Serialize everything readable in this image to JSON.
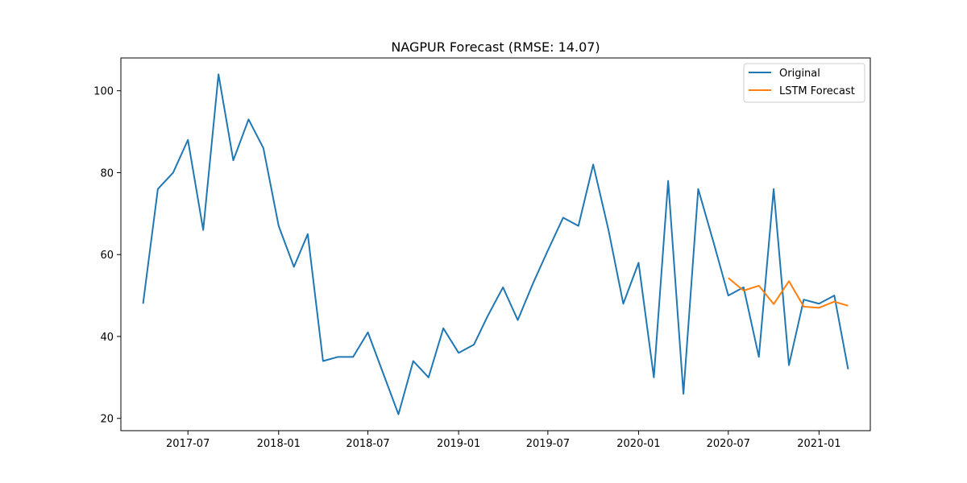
{
  "chart_data": {
    "type": "line",
    "title": "NAGPUR Forecast (RMSE: 14.07)",
    "xlabel": "",
    "ylabel": "",
    "grid": false,
    "legend_placement": "top-right",
    "xlim": [
      "2017-02-15",
      "2021-04-15"
    ],
    "ylim": [
      17,
      108
    ],
    "x_ticks": [
      "2017-07",
      "2018-01",
      "2018-07",
      "2019-01",
      "2019-07",
      "2020-01",
      "2020-07",
      "2021-01"
    ],
    "y_ticks": [
      20,
      40,
      60,
      80,
      100
    ],
    "series": [
      {
        "name": "Original",
        "color": "#1f77b4",
        "x": [
          "2017-04",
          "2017-05",
          "2017-06",
          "2017-07",
          "2017-08",
          "2017-09",
          "2017-10",
          "2017-11",
          "2017-12",
          "2018-01",
          "2018-02",
          "2018-03",
          "2018-04",
          "2018-05",
          "2018-06",
          "2018-07",
          "2018-08",
          "2018-09",
          "2018-10",
          "2018-11",
          "2018-12",
          "2019-01",
          "2019-02",
          "2019-03",
          "2019-04",
          "2019-05",
          "2019-06",
          "2019-07",
          "2019-08",
          "2019-09",
          "2019-10",
          "2019-11",
          "2019-12",
          "2020-01",
          "2020-02",
          "2020-03",
          "2020-04",
          "2020-05",
          "2020-06",
          "2020-07",
          "2020-08",
          "2020-09",
          "2020-10",
          "2020-11",
          "2020-12",
          "2021-01",
          "2021-02",
          "2021-03"
        ],
        "values": [
          48,
          76,
          80,
          88,
          66,
          104,
          83,
          93,
          86,
          67,
          57,
          65,
          34,
          35,
          35,
          41,
          31,
          21,
          34,
          30,
          42,
          36,
          38,
          45,
          52,
          44,
          53,
          61,
          69,
          67,
          82,
          66,
          48,
          58,
          30,
          78,
          26,
          76,
          63,
          50,
          52,
          35,
          76,
          33,
          49,
          48,
          50,
          32
        ]
      },
      {
        "name": "LSTM Forecast",
        "color": "#ff7f0e",
        "x": [
          "2020-07",
          "2020-08",
          "2020-09",
          "2020-10",
          "2020-11",
          "2020-12",
          "2021-01",
          "2021-02",
          "2021-03"
        ],
        "values": [
          54.3,
          51.2,
          52.4,
          47.9,
          53.5,
          47.3,
          47.0,
          48.5,
          47.5
        ]
      }
    ]
  }
}
